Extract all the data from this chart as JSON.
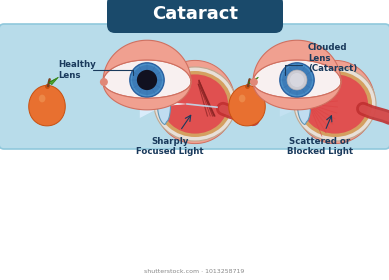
{
  "title": "Cataract",
  "title_bg": "#1a4a6b",
  "title_color": "#ffffff",
  "bg_color": "#ffffff",
  "panel_bg": "#b8dcea",
  "panel_border": "#90c8dc",
  "label_healthy": "Healthy\nLens",
  "label_clouded": "Clouded\nLens\n(Cataract)",
  "label_sharply": "Sharply\nFocused Light",
  "label_scattered": "Scattered or\nBlocked Light",
  "label_color": "#1a3a5c",
  "eye_iris_color": "#4a90c8",
  "eye_iris_dark": "#2a60a0",
  "eye_pupil_healthy": "#111120",
  "eye_pupil_cataract": "#b8b8c0",
  "eye_sclera": "#f8f0f0",
  "eye_lid_color": "#f0a090",
  "eye_lid_dark": "#e08878",
  "eyelid_stroke": "#d07060",
  "apple_body": "#e87030",
  "apple_body_dark": "#c85010",
  "apple_leaf": "#50a030",
  "apple_stem": "#7a4020",
  "eyeball_red": "#cc3333",
  "eyeball_red_inner": "#e05050",
  "eyeball_muscle": "#d06060",
  "eyeball_stripe": "#b02020",
  "lens_color": "#c0dcf0",
  "lens_edge": "#6098b8",
  "sclera_white": "#e8e0d8",
  "choroid_color": "#d4a060",
  "light_beam": "#d8eef8",
  "optic_nerve": "#c03030",
  "shutter_text": "shutterstock.com · 1013258719",
  "shutter_color": "#888888"
}
